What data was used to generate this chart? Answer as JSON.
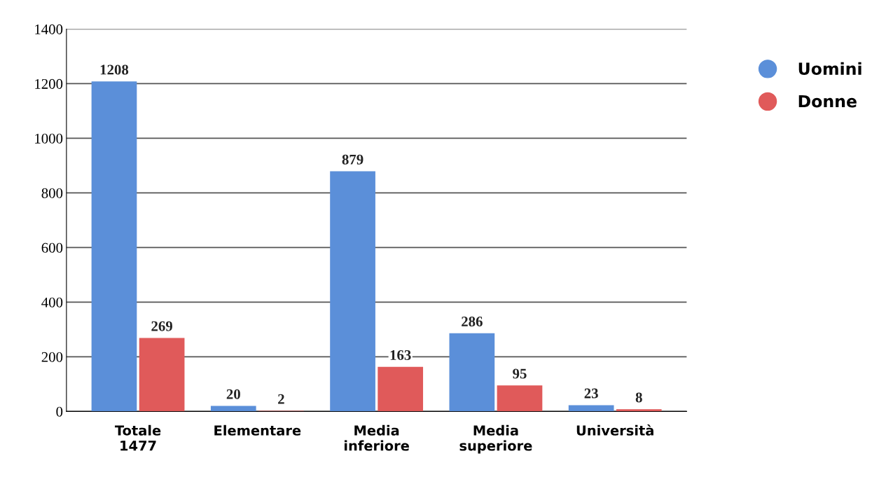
{
  "chart_data": {
    "type": "bar",
    "categories": [
      "Totale\n1477",
      "Elementare",
      "Media\ninferiore",
      "Media\nsuperiore",
      "Università"
    ],
    "series": [
      {
        "name": "Uomini",
        "color": "#5b8fd9",
        "values": [
          1208,
          20,
          879,
          286,
          23
        ]
      },
      {
        "name": "Donne",
        "color": "#e05a5a",
        "values": [
          269,
          2,
          163,
          95,
          8
        ]
      }
    ],
    "ylim": [
      0,
      1400
    ],
    "yticks": [
      0,
      200,
      400,
      600,
      800,
      1000,
      1200,
      1400
    ],
    "grid": "y",
    "legend": "right",
    "data_labels": true
  }
}
